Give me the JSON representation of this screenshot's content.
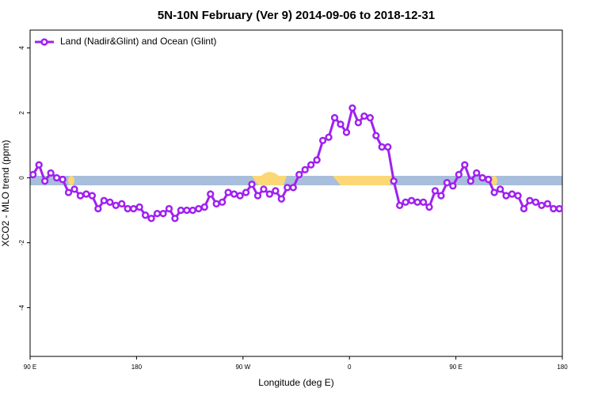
{
  "chart_data": {
    "type": "line",
    "title": "5N-10N February (Ver 9)   2014-09-06 to 2018-12-31",
    "x_label": "Longitude (deg E)",
    "y_label": "XCO2 - MLO trend (ppm)",
    "legend": "top-left",
    "xlim": [
      90,
      540
    ],
    "ylim": [
      -5.5,
      4.55
    ],
    "xticks": [
      {
        "value": 90,
        "label": "90 E"
      },
      {
        "value": 180,
        "label": "180"
      },
      {
        "value": 270,
        "label": "90 W"
      },
      {
        "value": 360,
        "label": "0"
      },
      {
        "value": 450,
        "label": "90 E"
      },
      {
        "value": 540,
        "label": "180"
      }
    ],
    "yticks": [
      -4,
      -2,
      0,
      2,
      4
    ],
    "x": [
      92.5,
      97.5,
      102.5,
      107.5,
      112.5,
      117.5,
      122.5,
      127.5,
      132.5,
      137.5,
      142.5,
      147.5,
      152.5,
      157.5,
      162.5,
      167.5,
      172.5,
      177.5,
      182.5,
      187.5,
      192.5,
      197.5,
      202.5,
      207.5,
      212.5,
      217.5,
      222.5,
      227.5,
      232.5,
      237.5,
      242.5,
      247.5,
      252.5,
      257.5,
      262.5,
      267.5,
      272.5,
      277.5,
      282.5,
      287.5,
      292.5,
      297.5,
      302.5,
      307.5,
      312.5,
      317.5,
      322.5,
      327.5,
      332.5,
      337.5,
      342.5,
      347.5,
      352.5,
      357.5,
      362.5,
      367.5,
      372.5,
      377.5,
      382.5,
      387.5,
      392.5,
      397.5,
      402.5,
      407.5,
      412.5,
      417.5,
      422.5,
      427.5,
      432.5,
      437.5,
      442.5,
      447.5,
      452.5,
      457.5,
      462.5,
      467.5,
      472.5,
      477.5,
      482.5,
      487.5,
      492.5,
      497.5,
      502.5,
      507.5,
      512.5,
      517.5,
      522.5,
      527.5,
      532.5,
      537.5
    ],
    "series": [
      {
        "name": "Land (Nadir&Glint) and Ocean (Glint)",
        "color": "#a020f0",
        "values": [
          0.1,
          0.4,
          -0.1,
          0.15,
          0.0,
          -0.05,
          -0.45,
          -0.35,
          -0.55,
          -0.5,
          -0.55,
          -0.95,
          -0.7,
          -0.75,
          -0.85,
          -0.8,
          -0.95,
          -0.95,
          -0.9,
          -1.15,
          -1.25,
          -1.1,
          -1.1,
          -0.95,
          -1.25,
          -1.0,
          -1.0,
          -1.0,
          -0.95,
          -0.9,
          -0.5,
          -0.8,
          -0.75,
          -0.45,
          -0.5,
          -0.55,
          -0.45,
          -0.2,
          -0.55,
          -0.35,
          -0.5,
          -0.4,
          -0.65,
          -0.3,
          -0.3,
          0.1,
          0.25,
          0.4,
          0.55,
          1.15,
          1.25,
          1.85,
          1.65,
          1.4,
          2.15,
          1.7,
          1.9,
          1.85,
          1.3,
          0.95,
          0.95,
          -0.1,
          -0.85,
          -0.75,
          -0.7,
          -0.75,
          -0.75,
          -0.9,
          -0.4,
          -0.55,
          -0.15,
          -0.25,
          0.1,
          0.4,
          -0.1,
          0.15,
          0.0,
          -0.05,
          -0.45,
          -0.35,
          -0.55,
          -0.5,
          -0.55,
          -0.95,
          -0.7,
          -0.75,
          -0.85,
          -0.8,
          -0.95,
          -0.95
        ]
      }
    ]
  }
}
